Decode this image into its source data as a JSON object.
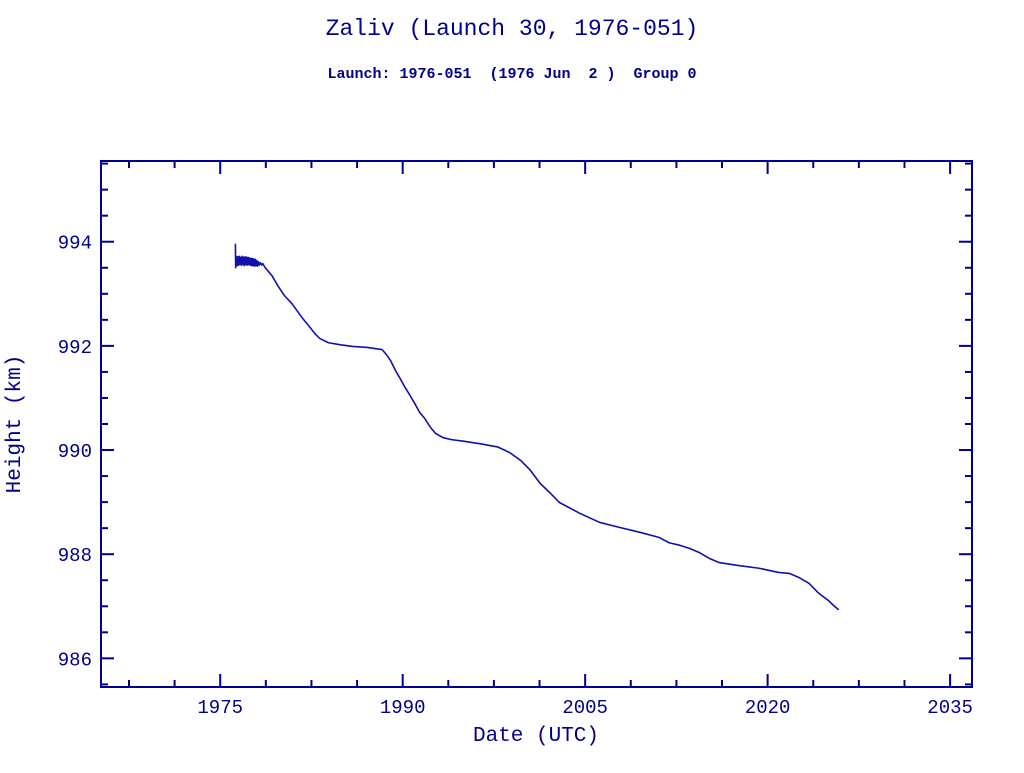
{
  "page": {
    "title": "Zaliv (Launch 30, 1976-051)",
    "subtitle": "Launch: 1976-051  (1976 Jun  2 )  Group 0"
  },
  "colors": {
    "ink": "#00008b",
    "line": "#1212aa",
    "background": "#ffffff"
  },
  "chart_data": {
    "type": "line",
    "title": "Zaliv (Launch 30, 1976-051)",
    "subtitle": "Launch: 1976-051  (1976 Jun  2 )  Group 0",
    "xlabel": "Date (UTC)",
    "ylabel": "Height (km)",
    "xlim": [
      1965.2,
      2036.8
    ],
    "ylim": [
      985.45,
      995.55
    ],
    "x_ticks": [
      1975,
      1990,
      2005,
      2020,
      2035
    ],
    "x_tick_labels": [
      "1975",
      "1990",
      "2005",
      "2020",
      "2035"
    ],
    "x_minor_step": 3.75,
    "y_ticks": [
      986,
      988,
      990,
      992,
      994
    ],
    "y_tick_labels": [
      "986",
      "988",
      "990",
      "992",
      "994"
    ],
    "y_minor_step": 0.5,
    "grid": false,
    "legend": false,
    "series": [
      {
        "name": "orbital_height_km",
        "points": [
          [
            1976.25,
            993.95
          ],
          [
            1976.27,
            993.5
          ],
          [
            1976.32,
            993.72
          ],
          [
            1976.38,
            993.54
          ],
          [
            1976.44,
            993.71
          ],
          [
            1976.5,
            993.55
          ],
          [
            1976.56,
            993.72
          ],
          [
            1976.62,
            993.56
          ],
          [
            1976.68,
            993.7
          ],
          [
            1976.74,
            993.55
          ],
          [
            1976.8,
            993.72
          ],
          [
            1976.86,
            993.56
          ],
          [
            1976.92,
            993.7
          ],
          [
            1976.98,
            993.54
          ],
          [
            1977.04,
            993.71
          ],
          [
            1977.1,
            993.56
          ],
          [
            1977.16,
            993.7
          ],
          [
            1977.22,
            993.55
          ],
          [
            1977.28,
            993.7
          ],
          [
            1977.34,
            993.56
          ],
          [
            1977.4,
            993.69
          ],
          [
            1977.46,
            993.55
          ],
          [
            1977.52,
            993.68
          ],
          [
            1977.58,
            993.54
          ],
          [
            1977.64,
            993.68
          ],
          [
            1977.7,
            993.54
          ],
          [
            1977.76,
            993.67
          ],
          [
            1977.82,
            993.53
          ],
          [
            1977.88,
            993.66
          ],
          [
            1977.94,
            993.54
          ],
          [
            1978.0,
            993.64
          ],
          [
            1978.06,
            993.53
          ],
          [
            1978.12,
            993.62
          ],
          [
            1978.2,
            993.55
          ],
          [
            1978.3,
            993.6
          ],
          [
            1978.4,
            993.55
          ],
          [
            1978.5,
            993.58
          ],
          [
            1978.7,
            993.5
          ],
          [
            1979.25,
            993.35
          ],
          [
            1979.75,
            993.15
          ],
          [
            1980.3,
            992.96
          ],
          [
            1980.9,
            992.81
          ],
          [
            1981.3,
            992.68
          ],
          [
            1981.8,
            992.52
          ],
          [
            1982.4,
            992.35
          ],
          [
            1982.8,
            992.23
          ],
          [
            1983.2,
            992.14
          ],
          [
            1983.9,
            992.06
          ],
          [
            1984.9,
            992.02
          ],
          [
            1985.9,
            991.99
          ],
          [
            1987.1,
            991.97
          ],
          [
            1988.3,
            991.93
          ],
          [
            1988.6,
            991.85
          ],
          [
            1989.0,
            991.72
          ],
          [
            1989.4,
            991.53
          ],
          [
            1989.8,
            991.37
          ],
          [
            1990.2,
            991.2
          ],
          [
            1990.6,
            991.05
          ],
          [
            1991.0,
            990.89
          ],
          [
            1991.4,
            990.72
          ],
          [
            1991.8,
            990.61
          ],
          [
            1992.3,
            990.43
          ],
          [
            1992.7,
            990.32
          ],
          [
            1993.3,
            990.24
          ],
          [
            1994.0,
            990.2
          ],
          [
            1995.0,
            990.17
          ],
          [
            1996.4,
            990.12
          ],
          [
            1997.8,
            990.06
          ],
          [
            1998.8,
            989.95
          ],
          [
            1999.7,
            989.8
          ],
          [
            2000.5,
            989.61
          ],
          [
            2001.3,
            989.36
          ],
          [
            2002.1,
            989.18
          ],
          [
            2002.9,
            988.99
          ],
          [
            2003.8,
            988.88
          ],
          [
            2004.6,
            988.78
          ],
          [
            2006.2,
            988.61
          ],
          [
            2007.9,
            988.51
          ],
          [
            2009.5,
            988.42
          ],
          [
            2011.1,
            988.32
          ],
          [
            2011.9,
            988.22
          ],
          [
            2012.8,
            988.17
          ],
          [
            2013.6,
            988.11
          ],
          [
            2014.4,
            988.03
          ],
          [
            2015.2,
            987.92
          ],
          [
            2016.0,
            987.84
          ],
          [
            2017.7,
            987.78
          ],
          [
            2019.3,
            987.73
          ],
          [
            2020.9,
            987.65
          ],
          [
            2021.8,
            987.63
          ],
          [
            2022.6,
            987.55
          ],
          [
            2023.4,
            987.44
          ],
          [
            2024.2,
            987.25
          ],
          [
            2025.0,
            987.11
          ],
          [
            2025.4,
            987.02
          ],
          [
            2025.8,
            986.94
          ]
        ]
      }
    ]
  }
}
